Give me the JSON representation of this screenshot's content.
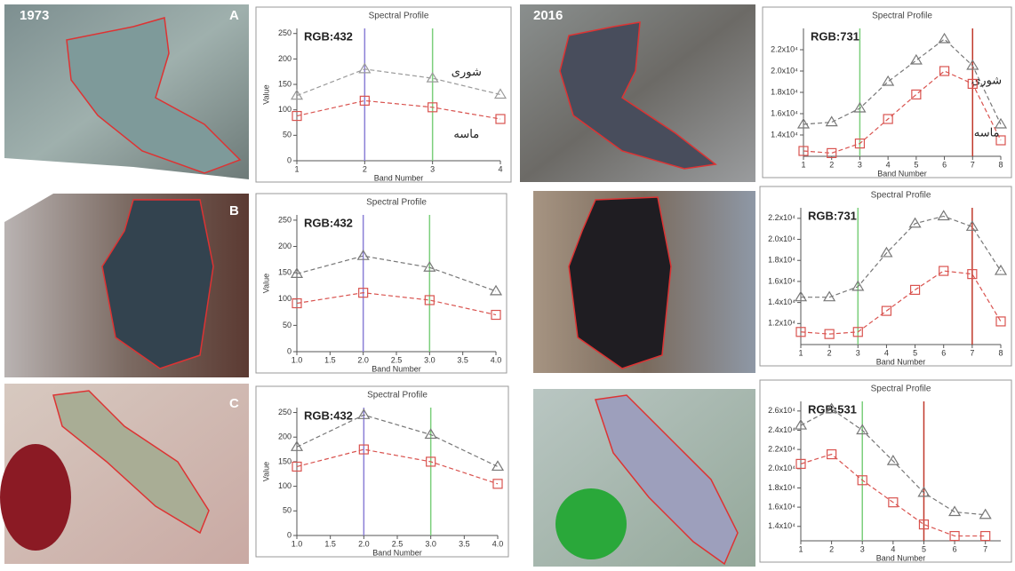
{
  "panel_labels": [
    "A",
    "B",
    "C"
  ],
  "year_labels": [
    "1973",
    "2016"
  ],
  "chart_data": [
    {
      "type": "line",
      "title": "Spectral Profile",
      "annotation": "RGB:432",
      "y_label": "Value",
      "x_label": "Band Number",
      "x": [
        1,
        2,
        3,
        4
      ],
      "xlim": [
        1,
        4
      ],
      "xticks": [
        1,
        2,
        3,
        4
      ],
      "ylim": [
        0,
        260
      ],
      "yticks": [
        0,
        50,
        100,
        150,
        200,
        250
      ],
      "band_lines": [
        {
          "x": 2,
          "color": "#8b7fd6"
        },
        {
          "x": 3,
          "color": "#7ccf7c"
        }
      ],
      "series": [
        {
          "name": "شوری",
          "color": "#9a9a9a",
          "marker": "triangle",
          "values": [
            128,
            180,
            162,
            130
          ]
        },
        {
          "name": "ماسه",
          "color": "#d9534f",
          "marker": "square",
          "values": [
            88,
            118,
            105,
            82
          ]
        }
      ]
    },
    {
      "type": "line",
      "title": "Spectral Profile",
      "annotation": "RGB:731",
      "x_label": "Band Number",
      "x": [
        1,
        2,
        3,
        4,
        5,
        6,
        7,
        8
      ],
      "xlim": [
        1,
        8
      ],
      "xticks": [
        1,
        2,
        3,
        4,
        5,
        6,
        7,
        8
      ],
      "ylim": [
        12000,
        24000
      ],
      "yticks": [
        {
          "value": 14000,
          "label": "1.4x10⁴"
        },
        {
          "value": 16000,
          "label": "1.6x10⁴"
        },
        {
          "value": 18000,
          "label": "1.8x10⁴"
        },
        {
          "value": 20000,
          "label": "2.0x10⁴"
        },
        {
          "value": 22000,
          "label": "2.2x10⁴"
        }
      ],
      "band_lines": [
        {
          "x": 3,
          "color": "#7ccf7c"
        },
        {
          "x": 7,
          "color": "#c0392b"
        }
      ],
      "series": [
        {
          "name": "شوری",
          "color": "#777777",
          "marker": "triangle",
          "values": [
            15000,
            15200,
            16500,
            19000,
            21000,
            23000,
            20500,
            15000
          ]
        },
        {
          "name": "ماسه",
          "color": "#d9534f",
          "marker": "square",
          "values": [
            12500,
            12300,
            13200,
            15500,
            17800,
            20000,
            18800,
            13500
          ]
        }
      ]
    },
    {
      "type": "line",
      "title": "Spectral Profile",
      "annotation": "RGB:432",
      "y_label": "Value",
      "x_label": "Band Number",
      "x": [
        1,
        2,
        3,
        4
      ],
      "xlim": [
        1,
        4
      ],
      "xticks": [
        {
          "value": 1,
          "label": "1.0"
        },
        {
          "value": 1.5,
          "label": "1.5"
        },
        {
          "value": 2,
          "label": "2.0"
        },
        {
          "value": 2.5,
          "label": "2.5"
        },
        {
          "value": 3,
          "label": "3.0"
        },
        {
          "value": 3.5,
          "label": "3.5"
        },
        {
          "value": 4,
          "label": "4.0"
        }
      ],
      "ylim": [
        0,
        260
      ],
      "yticks": [
        0,
        50,
        100,
        150,
        200,
        250
      ],
      "band_lines": [
        {
          "x": 2,
          "color": "#8b7fd6"
        },
        {
          "x": 3,
          "color": "#7ccf7c"
        }
      ],
      "series": [
        {
          "color": "#777777",
          "marker": "triangle",
          "values": [
            148,
            182,
            160,
            115
          ]
        },
        {
          "color": "#d9534f",
          "marker": "square",
          "values": [
            92,
            112,
            98,
            70
          ]
        }
      ]
    },
    {
      "type": "line",
      "title": "Spectral Profile",
      "annotation": "RGB:731",
      "x_label": "Band Number",
      "x": [
        1,
        2,
        3,
        4,
        5,
        6,
        7,
        8
      ],
      "xlim": [
        1,
        8
      ],
      "xticks": [
        1,
        2,
        3,
        4,
        5,
        6,
        7,
        8
      ],
      "ylim": [
        10000,
        23000
      ],
      "yticks": [
        {
          "value": 12000,
          "label": "1.2x10⁴"
        },
        {
          "value": 14000,
          "label": "1.4x10⁴"
        },
        {
          "value": 16000,
          "label": "1.6x10⁴"
        },
        {
          "value": 18000,
          "label": "1.8x10⁴"
        },
        {
          "value": 20000,
          "label": "2.0x10⁴"
        },
        {
          "value": 22000,
          "label": "2.2x10⁴"
        }
      ],
      "band_lines": [
        {
          "x": 3,
          "color": "#7ccf7c"
        },
        {
          "x": 7,
          "color": "#c0392b"
        }
      ],
      "series": [
        {
          "color": "#777777",
          "marker": "triangle",
          "values": [
            14500,
            14500,
            15500,
            18700,
            21500,
            22200,
            21200,
            17000
          ]
        },
        {
          "color": "#d9534f",
          "marker": "square",
          "values": [
            11200,
            11000,
            11200,
            13200,
            15200,
            17000,
            16700,
            12200
          ]
        }
      ]
    },
    {
      "type": "line",
      "title": "Spectral Profile",
      "annotation": "RGB:432",
      "y_label": "Value",
      "x_label": "Band Number",
      "x": [
        1,
        2,
        3,
        4
      ],
      "xlim": [
        1,
        4
      ],
      "xticks": [
        {
          "value": 1,
          "label": "1.0"
        },
        {
          "value": 1.5,
          "label": "1.5"
        },
        {
          "value": 2,
          "label": "2.0"
        },
        {
          "value": 2.5,
          "label": "2.5"
        },
        {
          "value": 3,
          "label": "3.0"
        },
        {
          "value": 3.5,
          "label": "3.5"
        },
        {
          "value": 4,
          "label": "4.0"
        }
      ],
      "ylim": [
        0,
        260
      ],
      "yticks": [
        0,
        50,
        100,
        150,
        200,
        250
      ],
      "band_lines": [
        {
          "x": 2,
          "color": "#8b7fd6"
        },
        {
          "x": 3,
          "color": "#7ccf7c"
        }
      ],
      "series": [
        {
          "color": "#777777",
          "marker": "triangle",
          "values": [
            180,
            245,
            205,
            140
          ]
        },
        {
          "color": "#d9534f",
          "marker": "square",
          "values": [
            140,
            175,
            150,
            105
          ]
        }
      ]
    },
    {
      "type": "line",
      "title": "Spectral Profile",
      "annotation": "RGB:531",
      "x_label": "Band Number",
      "x": [
        1,
        2,
        3,
        4,
        5,
        6,
        7
      ],
      "xlim": [
        1,
        7.5
      ],
      "xticks": [
        1,
        2,
        3,
        4,
        5,
        6,
        7
      ],
      "ylim": [
        12500,
        27000
      ],
      "yticks": [
        {
          "value": 14000,
          "label": "1.4x10⁴"
        },
        {
          "value": 16000,
          "label": "1.6x10⁴"
        },
        {
          "value": 18000,
          "label": "1.8x10⁴"
        },
        {
          "value": 20000,
          "label": "2.0x10⁴"
        },
        {
          "value": 22000,
          "label": "2.2x10⁴"
        },
        {
          "value": 24000,
          "label": "2.4x10⁴"
        },
        {
          "value": 26000,
          "label": "2.6x10⁴"
        }
      ],
      "band_lines": [
        {
          "x": 3,
          "color": "#7ccf7c"
        },
        {
          "x": 5,
          "color": "#c0392b"
        }
      ],
      "series": [
        {
          "color": "#777777",
          "marker": "triangle",
          "values": [
            24500,
            26200,
            24000,
            20800,
            17500,
            15500,
            15200
          ]
        },
        {
          "color": "#d9534f",
          "marker": "square",
          "values": [
            20500,
            21500,
            18800,
            16500,
            14200,
            13000,
            13000
          ]
        }
      ]
    }
  ]
}
